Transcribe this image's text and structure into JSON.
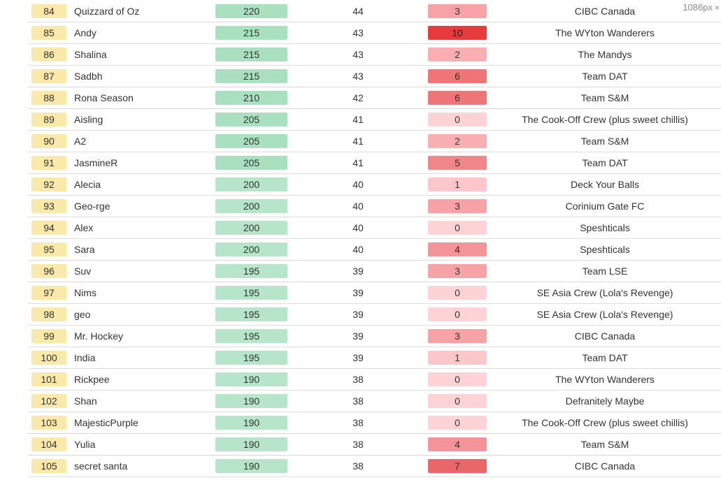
{
  "viewport_indicator": {
    "text": "1086px",
    "close_glyph": "×"
  },
  "colors": {
    "rank_bg": "#fbe9a9",
    "score_scale": [
      "#a8e0c0",
      "#b6e5c9"
    ],
    "misses_scale": [
      "#fdd3d6",
      "#fcc7cb",
      "#f9afb2",
      "#f7a2a5",
      "#f39598",
      "#f08689",
      "#ef7577",
      "#ea6668",
      "#e8393c"
    ]
  },
  "columns": [
    "rank",
    "name",
    "score",
    "points",
    "misses",
    "team"
  ],
  "rows": [
    {
      "rank": "84",
      "name": "Quizzard of Oz",
      "score": "220",
      "points": "44",
      "misses": "3",
      "team": "CIBC Canada"
    },
    {
      "rank": "85",
      "name": "Andy",
      "score": "215",
      "points": "43",
      "misses": "10",
      "team": "The WYton Wanderers"
    },
    {
      "rank": "86",
      "name": "Shalina",
      "score": "215",
      "points": "43",
      "misses": "2",
      "team": "The Mandys"
    },
    {
      "rank": "87",
      "name": "Sadbh",
      "score": "215",
      "points": "43",
      "misses": "6",
      "team": "Team DAT"
    },
    {
      "rank": "88",
      "name": "Rona Season",
      "score": "210",
      "points": "42",
      "misses": "6",
      "team": "Team S&M"
    },
    {
      "rank": "89",
      "name": "Aisling",
      "score": "205",
      "points": "41",
      "misses": "0",
      "team": "The Cook-Off Crew (plus sweet chillis)"
    },
    {
      "rank": "90",
      "name": "A2",
      "score": "205",
      "points": "41",
      "misses": "2",
      "team": "Team S&M"
    },
    {
      "rank": "91",
      "name": "JasmineR",
      "score": "205",
      "points": "41",
      "misses": "5",
      "team": "Team DAT"
    },
    {
      "rank": "92",
      "name": "Alecia",
      "score": "200",
      "points": "40",
      "misses": "1",
      "team": "Deck Your Balls"
    },
    {
      "rank": "93",
      "name": "Geo-rge",
      "score": "200",
      "points": "40",
      "misses": "3",
      "team": "Corinium Gate FC"
    },
    {
      "rank": "94",
      "name": "Alex",
      "score": "200",
      "points": "40",
      "misses": "0",
      "team": "Speshticals"
    },
    {
      "rank": "95",
      "name": "Sara",
      "score": "200",
      "points": "40",
      "misses": "4",
      "team": "Speshticals"
    },
    {
      "rank": "96",
      "name": "Suv",
      "score": "195",
      "points": "39",
      "misses": "3",
      "team": "Team LSE"
    },
    {
      "rank": "97",
      "name": "Nims",
      "score": "195",
      "points": "39",
      "misses": "0",
      "team": "SE Asia Crew (Lola's Revenge)"
    },
    {
      "rank": "98",
      "name": "geo",
      "score": "195",
      "points": "39",
      "misses": "0",
      "team": "SE Asia Crew (Lola's Revenge)"
    },
    {
      "rank": "99",
      "name": "Mr. Hockey",
      "score": "195",
      "points": "39",
      "misses": "3",
      "team": "CIBC Canada"
    },
    {
      "rank": "100",
      "name": "India",
      "score": "195",
      "points": "39",
      "misses": "1",
      "team": "Team DAT"
    },
    {
      "rank": "101",
      "name": "Rickpee",
      "score": "190",
      "points": "38",
      "misses": "0",
      "team": "The WYton Wanderers"
    },
    {
      "rank": "102",
      "name": "Shan",
      "score": "190",
      "points": "38",
      "misses": "0",
      "team": "Defranitely Maybe"
    },
    {
      "rank": "103",
      "name": "MajesticPurple",
      "score": "190",
      "points": "38",
      "misses": "0",
      "team": "The Cook-Off Crew (plus sweet chillis)"
    },
    {
      "rank": "104",
      "name": "Yulia",
      "score": "190",
      "points": "38",
      "misses": "4",
      "team": "Team S&M"
    },
    {
      "rank": "105",
      "name": "secret santa",
      "score": "190",
      "points": "38",
      "misses": "7",
      "team": "CIBC Canada"
    }
  ]
}
